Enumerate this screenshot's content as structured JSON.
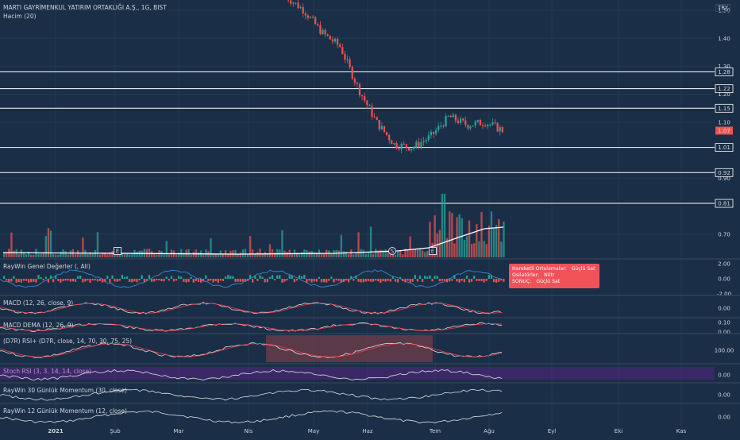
{
  "header": {
    "title": "MARTI GAYRİMENKUL YATIRIM ORTAKLIĞI A.Ş., 1G, BIST",
    "volume_label": "Hacim (20)",
    "currency": "TRY"
  },
  "colors": {
    "background": "#1a2e47",
    "up": "#26a69a",
    "down": "#ef5350",
    "line_white": "#ffffff",
    "signal_red": "#f23645",
    "signal_blue": "#42a5f5",
    "tooltip": "#f0525a",
    "stoch_band": "#7b1fa2"
  },
  "panes": [
    {
      "id": "raywin-genel",
      "title": "RayWin Genel Değerler (, All)",
      "ticks": [
        "2.00",
        "0.00",
        "-2.00"
      ]
    },
    {
      "id": "macd",
      "title": "MACD (12, 26, close, 9)",
      "ticks": [
        "0.00"
      ]
    },
    {
      "id": "macd-dema",
      "title": "MACD DEMA (12, 26, 9)",
      "ticks": [
        "0.10",
        "0.00"
      ]
    },
    {
      "id": "d7r-rsi",
      "title": "(D7R) RSI+ (D7R, close, 14, 70, 30, 75, 25)",
      "ticks": [
        "100.00"
      ]
    },
    {
      "id": "stoch-rsi",
      "title": "Stoch RSI (3, 3, 14, 14, close)",
      "ticks": [
        "0.00"
      ]
    },
    {
      "id": "momentum-30",
      "title": "RayWin 30 Günlük Momentum (30, close)",
      "ticks": [
        "0.00"
      ]
    },
    {
      "id": "momentum-12",
      "title": "RayWin 12 Günlük Momentum (12, close)",
      "ticks": [
        "0.00"
      ]
    }
  ],
  "tooltip": {
    "ma_label": "Hareketli Ortalamalar:",
    "ma_value": "Güçlü Sat",
    "osc_label": "Osilatörler:",
    "osc_value": "Nötr",
    "result_label": "SONUÇ:",
    "result_value": "Güçlü Sat"
  },
  "events": [
    {
      "label": "E",
      "date": "Şub"
    },
    {
      "label": "S",
      "date": "Haz"
    },
    {
      "label": "E",
      "date": "Tem"
    }
  ],
  "chart_data": {
    "type": "candlestick",
    "x_axis_labels": [
      "2021",
      "Şub",
      "Mar",
      "Nis",
      "May",
      "Haz",
      "Tem",
      "Ağu",
      "Eyl",
      "Eki",
      "Kas"
    ],
    "y_axis_ticks": [
      1.5,
      1.4,
      1.3,
      1.2,
      1.1,
      0.9,
      0.7
    ],
    "y_axis_tick_labels": [
      "1.50",
      "1.40",
      "1.30",
      "1.20",
      "1.10",
      "0.90",
      "0.70"
    ],
    "ylim": [
      0.6,
      1.52
    ],
    "last_price": 1.07,
    "last_price_label": "1.07",
    "horizontal_levels": [
      1.28,
      1.22,
      1.15,
      1.01,
      0.92,
      0.81
    ],
    "horizontal_level_labels": [
      "1.28",
      "1.22",
      "1.15",
      "1.01",
      "0.92",
      "0.81"
    ],
    "price_path": {
      "months": [
        "May",
        "May",
        "May",
        "Haz",
        "Haz",
        "Haz",
        "Haz",
        "Haz",
        "Tem",
        "Tem",
        "Tem",
        "Ağu",
        "Ağu"
      ],
      "close": [
        1.55,
        1.5,
        1.42,
        1.37,
        1.22,
        1.1,
        1.02,
        1.01,
        1.05,
        1.12,
        1.09,
        1.1,
        1.07
      ]
    }
  }
}
